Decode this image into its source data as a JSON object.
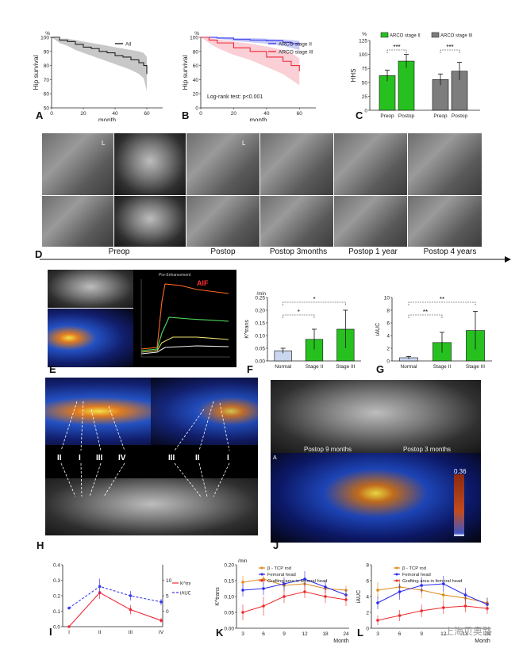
{
  "panels": {
    "A": "A",
    "B": "B",
    "C": "C",
    "D": "D",
    "E": "E",
    "F": "F",
    "G": "G",
    "H": "H",
    "I": "I",
    "J": "J",
    "K": "K",
    "L": "L"
  },
  "timeline": {
    "labels": [
      "Preop",
      "Postop",
      "Postop 3months",
      "Postop 1 year",
      "Postop 4 years"
    ]
  },
  "photo_text": {
    "d_side": "L",
    "e_curve_title": "Pre-Enhancement",
    "e_aif": "AIF",
    "j_left": "Postop 9 months",
    "j_right": "Postop 3 months",
    "j_scale": "0.36",
    "j_corner": "A",
    "h_regions_left": [
      "II",
      "I",
      "III",
      "IV"
    ],
    "h_regions_right": [
      "III",
      "II",
      "I"
    ]
  },
  "watermark": "上海贝奥路",
  "chart_data": [
    {
      "id": "A",
      "type": "line",
      "ylabel": "Hip survival",
      "xlabel": "month",
      "yunit": "%",
      "xlim": [
        0,
        70
      ],
      "ylim": [
        50,
        100
      ],
      "xticks": [
        0,
        20,
        40,
        60
      ],
      "yticks": [
        50,
        60,
        70,
        80,
        90,
        100
      ],
      "legend": "top-right",
      "series": [
        {
          "name": "All",
          "color": "#222222",
          "band": "#9a9a9a",
          "x": [
            0,
            5,
            10,
            15,
            20,
            25,
            30,
            35,
            40,
            45,
            50,
            55,
            58,
            60
          ],
          "y": [
            100,
            98,
            97,
            95,
            93,
            92,
            90,
            89,
            87,
            86,
            84,
            82,
            80,
            74
          ],
          "upper": [
            100,
            99,
            99,
            98,
            97,
            96,
            95,
            94,
            93,
            92,
            91,
            90,
            89,
            86
          ],
          "lower": [
            100,
            96,
            94,
            91,
            89,
            87,
            85,
            83,
            81,
            79,
            77,
            74,
            71,
            62
          ]
        }
      ]
    },
    {
      "id": "B",
      "type": "line",
      "ylabel": "Hip survival",
      "xlabel": "month",
      "yunit": "%",
      "xlim": [
        0,
        70
      ],
      "ylim": [
        0,
        100
      ],
      "xticks": [
        0,
        20,
        40,
        60
      ],
      "yticks": [
        0,
        20,
        40,
        60,
        80,
        100
      ],
      "annotation": "Log-rank test: p<0.001",
      "legend": "top-right",
      "series": [
        {
          "name": "ARCO stage II",
          "color": "#3a3aee",
          "band": "#9aa2f0",
          "x": [
            0,
            10,
            20,
            30,
            40,
            50,
            55,
            60
          ],
          "y": [
            100,
            99,
            97,
            96,
            95,
            93,
            91,
            90
          ],
          "upper": [
            100,
            100,
            99,
            99,
            98,
            97,
            96,
            95
          ],
          "lower": [
            100,
            98,
            95,
            93,
            91,
            88,
            85,
            82
          ]
        },
        {
          "name": "ARCO stage III",
          "color": "#ee2a3a",
          "band": "#f6a8b4",
          "x": [
            0,
            5,
            10,
            20,
            30,
            40,
            50,
            55,
            60
          ],
          "y": [
            100,
            96,
            92,
            85,
            80,
            72,
            66,
            60,
            52
          ],
          "upper": [
            100,
            99,
            97,
            94,
            91,
            87,
            82,
            78,
            70
          ],
          "lower": [
            100,
            92,
            85,
            75,
            68,
            58,
            48,
            40,
            32
          ]
        }
      ]
    },
    {
      "id": "C",
      "type": "bar",
      "ylabel": "HHS",
      "yunit": "%",
      "ylim": [
        0,
        125
      ],
      "yticks": [
        0,
        25,
        50,
        75,
        100,
        125
      ],
      "categories": [
        "Preop",
        "Postop",
        "Preop",
        "Postop"
      ],
      "series": [
        {
          "name": "ARCO stage II",
          "color": "#27c11f",
          "values": [
            62,
            88,
            null,
            null
          ],
          "err": [
            10,
            12,
            null,
            null
          ]
        },
        {
          "name": "ARCO stage III",
          "color": "#7d7d7d",
          "values": [
            null,
            null,
            55,
            70
          ],
          "err": [
            null,
            null,
            10,
            16
          ]
        }
      ],
      "significance": [
        "***",
        "***"
      ]
    },
    {
      "id": "F",
      "type": "bar",
      "ylabel": "K^trans",
      "yunit": "/min",
      "ylim": [
        0,
        0.25
      ],
      "yticks": [
        0.0,
        0.05,
        0.1,
        0.15,
        0.2,
        0.25
      ],
      "categories": [
        "Normal",
        "Stage II",
        "Stage III"
      ],
      "values": [
        0.04,
        0.085,
        0.125
      ],
      "err": [
        0.01,
        0.04,
        0.075
      ],
      "colors": [
        "#c9d6ef",
        "#27c11f",
        "#27c11f"
      ],
      "significance": [
        "*",
        "*"
      ]
    },
    {
      "id": "G",
      "type": "bar",
      "ylabel": "iAUC",
      "ylim": [
        0,
        10
      ],
      "yticks": [
        0,
        2,
        4,
        6,
        8,
        10
      ],
      "categories": [
        "Normal",
        "Stage II",
        "Stage III"
      ],
      "values": [
        0.5,
        2.9,
        4.8
      ],
      "err": [
        0.2,
        1.6,
        3.0
      ],
      "colors": [
        "#c9d6ef",
        "#27c11f",
        "#27c11f"
      ],
      "significance": [
        "**",
        "**"
      ]
    },
    {
      "id": "I",
      "type": "line",
      "categories": [
        "I",
        "II",
        "III",
        "IV"
      ],
      "ylim": [
        0,
        0.4
      ],
      "yticks": [
        0.0,
        0.1,
        0.2,
        0.3,
        0.4
      ],
      "y2lim": [
        -5,
        15
      ],
      "y2ticks": [
        0,
        5,
        10
      ],
      "legend": "right",
      "series": [
        {
          "name": "K^trans",
          "color": "#ee2a3a",
          "axis": "left",
          "dashed": false,
          "values": [
            0.0,
            0.22,
            0.11,
            0.04
          ],
          "err": [
            0,
            0.04,
            0.03,
            0.015
          ]
        },
        {
          "name": "iAUC",
          "color": "#3a3aee",
          "axis": "right",
          "dashed": true,
          "values": [
            1,
            8,
            5,
            3
          ],
          "err": [
            0,
            2.5,
            1.5,
            1
          ]
        }
      ]
    },
    {
      "id": "K",
      "type": "line",
      "ylabel": "K^trans",
      "xlabel": "Month",
      "yunit": "/min",
      "ylim": [
        0,
        0.2
      ],
      "yticks": [
        0.0,
        0.05,
        0.1,
        0.15,
        0.2
      ],
      "x": [
        3,
        6,
        9,
        12,
        18,
        24
      ],
      "legend": "top",
      "series": [
        {
          "name": "β - TCP rod",
          "color": "#e0891a",
          "values": [
            0.145,
            0.155,
            0.135,
            0.14,
            0.125,
            0.12
          ],
          "err": [
            0.02,
            0.02,
            0.02,
            0.02,
            0.015,
            0.015
          ]
        },
        {
          "name": "Femoral head",
          "color": "#2a2aee",
          "values": [
            0.12,
            0.125,
            0.14,
            0.155,
            0.13,
            0.105
          ],
          "err": [
            0.02,
            0.02,
            0.02,
            0.025,
            0.02,
            0.015
          ]
        },
        {
          "name": "Grafting area in femoral head",
          "color": "#ee2a2a",
          "values": [
            0.05,
            0.07,
            0.1,
            0.115,
            0.1,
            0.09
          ],
          "err": [
            0.025,
            0.03,
            0.02,
            0.02,
            0.02,
            0.02
          ]
        }
      ]
    },
    {
      "id": "L",
      "type": "line",
      "ylabel": "iAUC",
      "xlabel": "Month",
      "ylim": [
        0,
        8
      ],
      "yticks": [
        0,
        2,
        4,
        6,
        8
      ],
      "x": [
        3,
        6,
        9,
        12,
        18,
        24
      ],
      "legend": "top",
      "series": [
        {
          "name": "β - TCP rod",
          "color": "#e0891a",
          "values": [
            4.8,
            5.2,
            4.8,
            4.2,
            3.8,
            3.2
          ],
          "err": [
            1,
            1,
            1,
            0.9,
            0.8,
            0.7
          ]
        },
        {
          "name": "Femoral head",
          "color": "#2a2aee",
          "values": [
            3.2,
            4.6,
            5.4,
            5.6,
            4.2,
            3.0
          ],
          "err": [
            0.8,
            1,
            1,
            1,
            0.9,
            0.8
          ]
        },
        {
          "name": "Grafting area in femoral head",
          "color": "#ee2a2a",
          "values": [
            1.0,
            1.6,
            2.2,
            2.6,
            2.8,
            2.5
          ],
          "err": [
            0.6,
            0.7,
            0.8,
            0.8,
            0.8,
            0.7
          ]
        }
      ]
    }
  ]
}
